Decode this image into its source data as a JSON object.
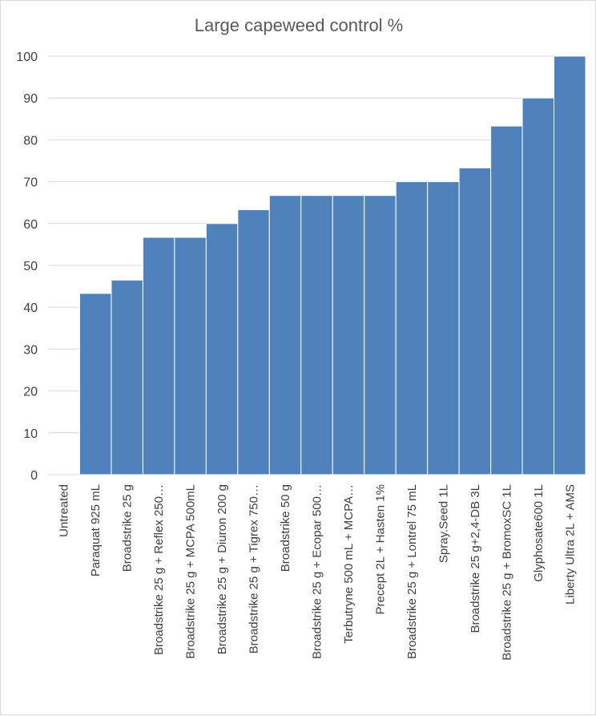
{
  "chart_data": {
    "type": "bar",
    "title": "Large capeweed control %",
    "xlabel": "",
    "ylabel": "",
    "ylim": [
      0,
      100
    ],
    "yticks": [
      0,
      10,
      20,
      30,
      40,
      50,
      60,
      70,
      80,
      90,
      100
    ],
    "grid": true,
    "legend": "none",
    "bar_color": "#4F81BD",
    "categories": [
      "Untreated",
      "Paraquat 925 mL",
      "Broadstrike 25 g",
      "Broadstrike 25 g + Reflex 250…",
      "Broadstrike 25 g + MCPA 500mL",
      "Broadstrike 25 g + Diuron 200 g",
      "Broadstrike 25 g + Tigrex 750…",
      "Broadstrike 50 g",
      "Broadstrike 25 g + Ecopar 500…",
      "Terbutryne 500 mL + MCPA…",
      "Precept 2L + Hasten 1%",
      "Broadstrike 25 g + Lontrel 75 mL",
      "Spray.Seed 1L",
      "Broadstrike 25 g+2,4-DB 3L",
      "Broadstrike 25 g + BromoxSC 1L",
      "Glyphosate600 1L",
      "Liberty Ultra 2L + AMS"
    ],
    "values": [
      0,
      43.3,
      46.5,
      56.7,
      56.7,
      60,
      63.3,
      66.7,
      66.7,
      66.7,
      66.7,
      70,
      70,
      73.3,
      83.3,
      90,
      100
    ]
  }
}
